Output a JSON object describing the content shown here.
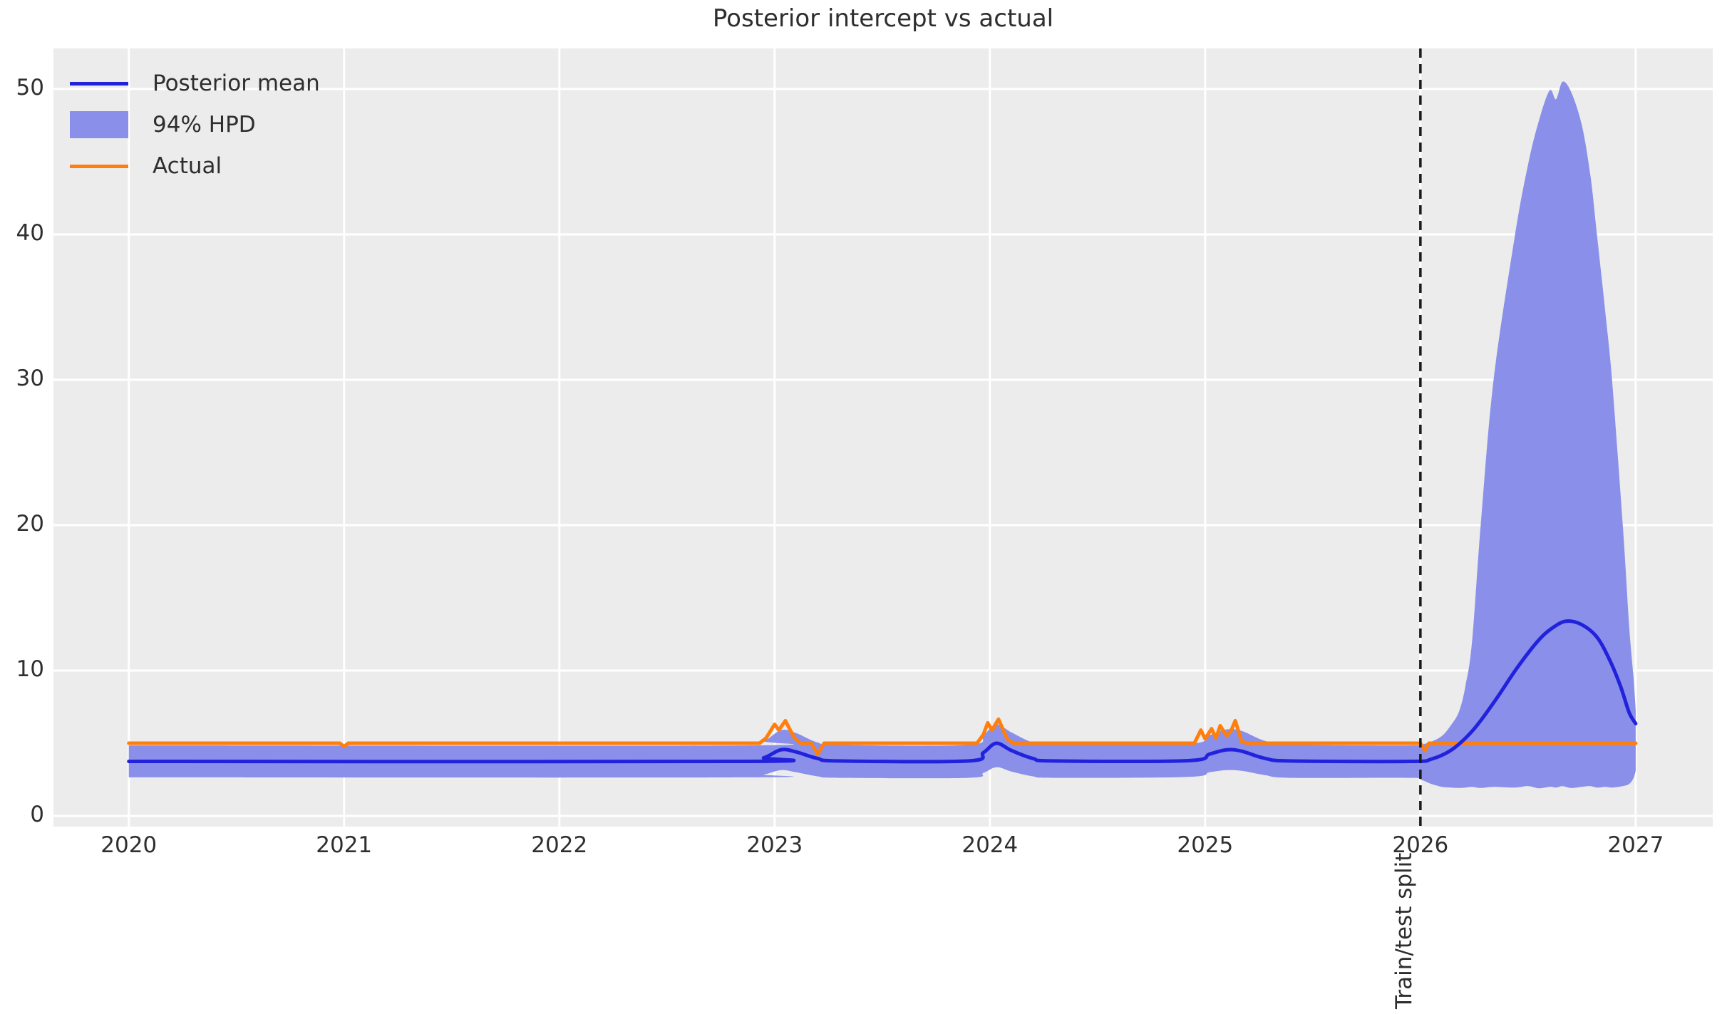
{
  "chart_data": {
    "type": "line",
    "title": "Posterior intercept vs actual",
    "xlabel": "",
    "ylabel": "",
    "xlim": [
      2019.65,
      2027.358
    ],
    "ylim": [
      -0.735,
      52.79
    ],
    "xticks": [
      2020,
      2021,
      2022,
      2023,
      2024,
      2025,
      2026,
      2027
    ],
    "xtick_labels": [
      "2020",
      "2021",
      "2022",
      "2023",
      "2024",
      "2025",
      "2026",
      "2027"
    ],
    "yticks": [
      0,
      10,
      20,
      30,
      40,
      50
    ],
    "ytick_labels": [
      "0",
      "10",
      "20",
      "30",
      "40",
      "50"
    ],
    "grid": "on",
    "legend": {
      "position": "upper left",
      "entries": [
        {
          "label": "Posterior mean",
          "type": "line",
          "color": "#2222dd"
        },
        {
          "label": "94% HPD",
          "type": "patch",
          "color": "#8a90e9"
        },
        {
          "label": "Actual",
          "type": "line",
          "color": "#ff7f0e"
        }
      ]
    },
    "colors": {
      "panel_bg": "#ececec",
      "grid": "#ffffff",
      "text": "#2f2f2f",
      "split_line": "#1a1a1a"
    },
    "annotation": {
      "x": 2026,
      "label": "Train/test split",
      "line_style": "dashed",
      "color": "#1a1a1a"
    },
    "series": {
      "posterior_mean": {
        "name": "Posterior mean",
        "color": "#2222dd",
        "x": [
          2020.0,
          2022.85,
          2022.95,
          2023.03,
          2023.1,
          2023.2,
          2023.3,
          2023.9,
          2023.97,
          2024.03,
          2024.1,
          2024.2,
          2024.3,
          2024.92,
          2025.02,
          2025.1,
          2025.17,
          2025.28,
          2025.4,
          2025.95,
          2026.05,
          2026.15,
          2026.25,
          2026.35,
          2026.45,
          2026.55,
          2026.62,
          2026.68,
          2026.75,
          2026.82,
          2026.88,
          2026.93,
          2026.97,
          2027.0
        ],
        "y": [
          3.75,
          3.75,
          4.0,
          4.55,
          4.4,
          3.95,
          3.78,
          3.78,
          4.35,
          5.0,
          4.5,
          3.95,
          3.78,
          3.8,
          4.25,
          4.55,
          4.45,
          3.95,
          3.78,
          3.75,
          3.9,
          4.6,
          6.0,
          8.0,
          10.2,
          12.1,
          13.0,
          13.4,
          13.15,
          12.3,
          10.7,
          8.9,
          7.1,
          6.35
        ]
      },
      "hpd_94": {
        "name": "94% HPD",
        "color": "#8a90e9",
        "x": [
          2020.0,
          2022.85,
          2022.95,
          2023.03,
          2023.1,
          2023.2,
          2023.3,
          2023.9,
          2023.97,
          2024.03,
          2024.1,
          2024.2,
          2024.3,
          2024.92,
          2025.02,
          2025.1,
          2025.17,
          2025.28,
          2025.4,
          2025.95,
          2026.0,
          2026.05,
          2026.1,
          2026.14,
          2026.18,
          2026.21,
          2026.24,
          2026.28,
          2026.34,
          2026.44,
          2026.5,
          2026.55,
          2026.6,
          2026.63,
          2026.66,
          2026.7,
          2026.75,
          2026.79,
          2026.82,
          2026.86,
          2026.89,
          2026.94,
          2026.97,
          2026.99,
          2027.0
        ],
        "upper": [
          4.85,
          4.85,
          5.15,
          5.9,
          5.7,
          5.05,
          4.88,
          4.88,
          5.55,
          6.3,
          5.75,
          5.05,
          4.9,
          4.95,
          5.55,
          5.95,
          5.85,
          5.15,
          4.9,
          4.85,
          4.9,
          5.1,
          5.5,
          6.2,
          7.2,
          9.0,
          12.0,
          20.0,
          30.0,
          40.0,
          44.8,
          47.8,
          49.9,
          49.3,
          50.5,
          49.8,
          47.5,
          44.0,
          40.0,
          34.5,
          30.0,
          20.0,
          13.0,
          9.5,
          7.3
        ],
        "lower": [
          2.65,
          2.65,
          2.85,
          3.15,
          3.0,
          2.72,
          2.62,
          2.62,
          2.95,
          3.35,
          3.05,
          2.72,
          2.62,
          2.68,
          3.0,
          3.15,
          3.1,
          2.8,
          2.62,
          2.62,
          2.5,
          2.2,
          2.0,
          1.95,
          1.92,
          1.95,
          2.0,
          1.92,
          2.0,
          1.95,
          2.05,
          1.9,
          2.0,
          1.95,
          2.05,
          1.92,
          2.0,
          2.05,
          1.95,
          2.0,
          1.95,
          2.05,
          2.2,
          2.6,
          3.1
        ]
      },
      "actual": {
        "name": "Actual",
        "color": "#ff7f0e",
        "x": [
          2020.0,
          2020.98,
          2021.0,
          2021.02,
          2022.93,
          2022.96,
          2023.0,
          2023.02,
          2023.05,
          2023.09,
          2023.12,
          2023.17,
          2023.2,
          2023.23,
          2023.94,
          2023.97,
          2023.99,
          2024.01,
          2024.04,
          2024.08,
          2024.11,
          2024.95,
          2024.98,
          2025.0,
          2025.03,
          2025.05,
          2025.07,
          2025.1,
          2025.12,
          2025.14,
          2025.17,
          2025.2,
          2025.22,
          2026.0,
          2026.02,
          2026.04,
          2026.07,
          2027.0
        ],
        "y": [
          5,
          5,
          4.78,
          5,
          5,
          5.35,
          6.3,
          5.9,
          6.55,
          5.4,
          5,
          5,
          4.25,
          5,
          5,
          5.6,
          6.4,
          5.9,
          6.65,
          5.3,
          5,
          5,
          5.9,
          5.3,
          6.0,
          5.35,
          6.2,
          5.5,
          5.85,
          6.55,
          5.1,
          5,
          5,
          5,
          4.5,
          5,
          5,
          5
        ]
      }
    }
  }
}
